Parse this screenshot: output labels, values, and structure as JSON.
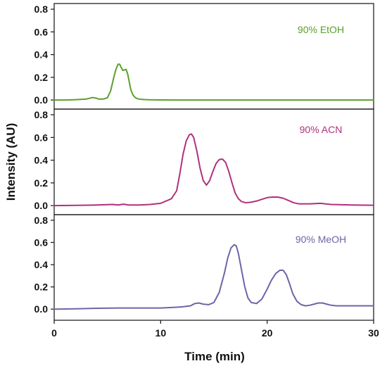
{
  "figure": {
    "ylabel": "Intensity (AU)",
    "xlabel": "Time (min)"
  },
  "chart_data": [
    {
      "type": "line",
      "annotation": "90% EtOH",
      "color": "#5aa02c",
      "xlim": [
        0,
        30
      ],
      "ylim": [
        -0.08,
        0.85
      ],
      "yticks": [
        0.0,
        0.2,
        0.4,
        0.6,
        0.8
      ],
      "ytick_labels": [
        "0.0",
        "0.2",
        "0.4",
        "0.6",
        "0.8"
      ],
      "series": [
        {
          "x": [
            0,
            1,
            2,
            3,
            3.3,
            3.6,
            3.9,
            4.2,
            4.6,
            5.0,
            5.3,
            5.6,
            5.8,
            6.0,
            6.15,
            6.3,
            6.45,
            6.6,
            6.75,
            6.9,
            7.05,
            7.2,
            7.4,
            7.6,
            7.8,
            8.0,
            8.5,
            9,
            10,
            12,
            15,
            20,
            25,
            30
          ],
          "y": [
            0.0,
            0.0,
            0.003,
            0.008,
            0.015,
            0.022,
            0.017,
            0.008,
            0.008,
            0.02,
            0.08,
            0.2,
            0.27,
            0.315,
            0.315,
            0.285,
            0.26,
            0.265,
            0.27,
            0.23,
            0.16,
            0.09,
            0.045,
            0.022,
            0.012,
            0.008,
            0.004,
            0.002,
            0.001,
            0.0,
            0.0,
            0.0,
            0.0,
            0.0
          ]
        }
      ]
    },
    {
      "type": "line",
      "annotation": "90% ACN",
      "color": "#b0307e",
      "xlim": [
        0,
        30
      ],
      "ylim": [
        -0.08,
        0.85
      ],
      "yticks": [
        0.0,
        0.2,
        0.4,
        0.6,
        0.8
      ],
      "ytick_labels": [
        "0.0",
        "0.2",
        "0.4",
        "0.6",
        "0.8"
      ],
      "series": [
        {
          "x": [
            0,
            2,
            4,
            5.5,
            6,
            6.5,
            7,
            8,
            9,
            10,
            11,
            11.5,
            11.8,
            12.1,
            12.4,
            12.7,
            12.9,
            13.1,
            13.4,
            13.7,
            14.0,
            14.3,
            14.6,
            14.9,
            15.2,
            15.5,
            15.8,
            16.1,
            16.4,
            16.7,
            17.0,
            17.3,
            17.6,
            18.0,
            18.5,
            19,
            19.5,
            20,
            20.5,
            21,
            21.5,
            22,
            22.5,
            23,
            24,
            25,
            26,
            28,
            30
          ],
          "y": [
            0.0,
            0.002,
            0.005,
            0.01,
            0.005,
            0.012,
            0.005,
            0.005,
            0.01,
            0.02,
            0.06,
            0.13,
            0.28,
            0.45,
            0.57,
            0.625,
            0.63,
            0.6,
            0.48,
            0.33,
            0.22,
            0.18,
            0.22,
            0.3,
            0.37,
            0.405,
            0.41,
            0.38,
            0.3,
            0.2,
            0.11,
            0.06,
            0.035,
            0.025,
            0.03,
            0.04,
            0.055,
            0.07,
            0.075,
            0.075,
            0.065,
            0.045,
            0.025,
            0.015,
            0.015,
            0.02,
            0.01,
            0.005,
            0.003
          ]
        }
      ]
    },
    {
      "type": "line",
      "annotation": "90% MeOH",
      "color": "#6b66a8",
      "xlim": [
        0,
        30
      ],
      "ylim": [
        -0.1,
        0.85
      ],
      "yticks": [
        0.0,
        0.2,
        0.4,
        0.6,
        0.8
      ],
      "ytick_labels": [
        "0.0",
        "0.2",
        "0.4",
        "0.6",
        "0.8"
      ],
      "series": [
        {
          "x": [
            0,
            2,
            4,
            6,
            8,
            10,
            11,
            12,
            12.8,
            13.2,
            13.6,
            14.0,
            14.5,
            15.0,
            15.5,
            16.0,
            16.3,
            16.6,
            16.9,
            17.1,
            17.3,
            17.6,
            17.9,
            18.2,
            18.5,
            19.0,
            19.5,
            20.0,
            20.4,
            20.8,
            21.2,
            21.5,
            21.8,
            22.1,
            22.4,
            22.8,
            23.2,
            23.6,
            24.0,
            24.4,
            24.8,
            25.2,
            25.6,
            26.0,
            26.5,
            27,
            28,
            30
          ],
          "y": [
            0.0,
            0.003,
            0.008,
            0.01,
            0.01,
            0.01,
            0.015,
            0.02,
            0.03,
            0.05,
            0.055,
            0.045,
            0.04,
            0.06,
            0.15,
            0.33,
            0.46,
            0.55,
            0.58,
            0.57,
            0.5,
            0.35,
            0.2,
            0.1,
            0.06,
            0.05,
            0.09,
            0.18,
            0.26,
            0.32,
            0.35,
            0.35,
            0.31,
            0.23,
            0.14,
            0.07,
            0.04,
            0.03,
            0.035,
            0.045,
            0.055,
            0.055,
            0.045,
            0.035,
            0.03,
            0.03,
            0.03,
            0.03
          ]
        }
      ]
    }
  ],
  "xaxis": {
    "ticks": [
      0,
      10,
      20,
      30
    ],
    "tick_labels": [
      "0",
      "10",
      "20",
      "30"
    ]
  }
}
